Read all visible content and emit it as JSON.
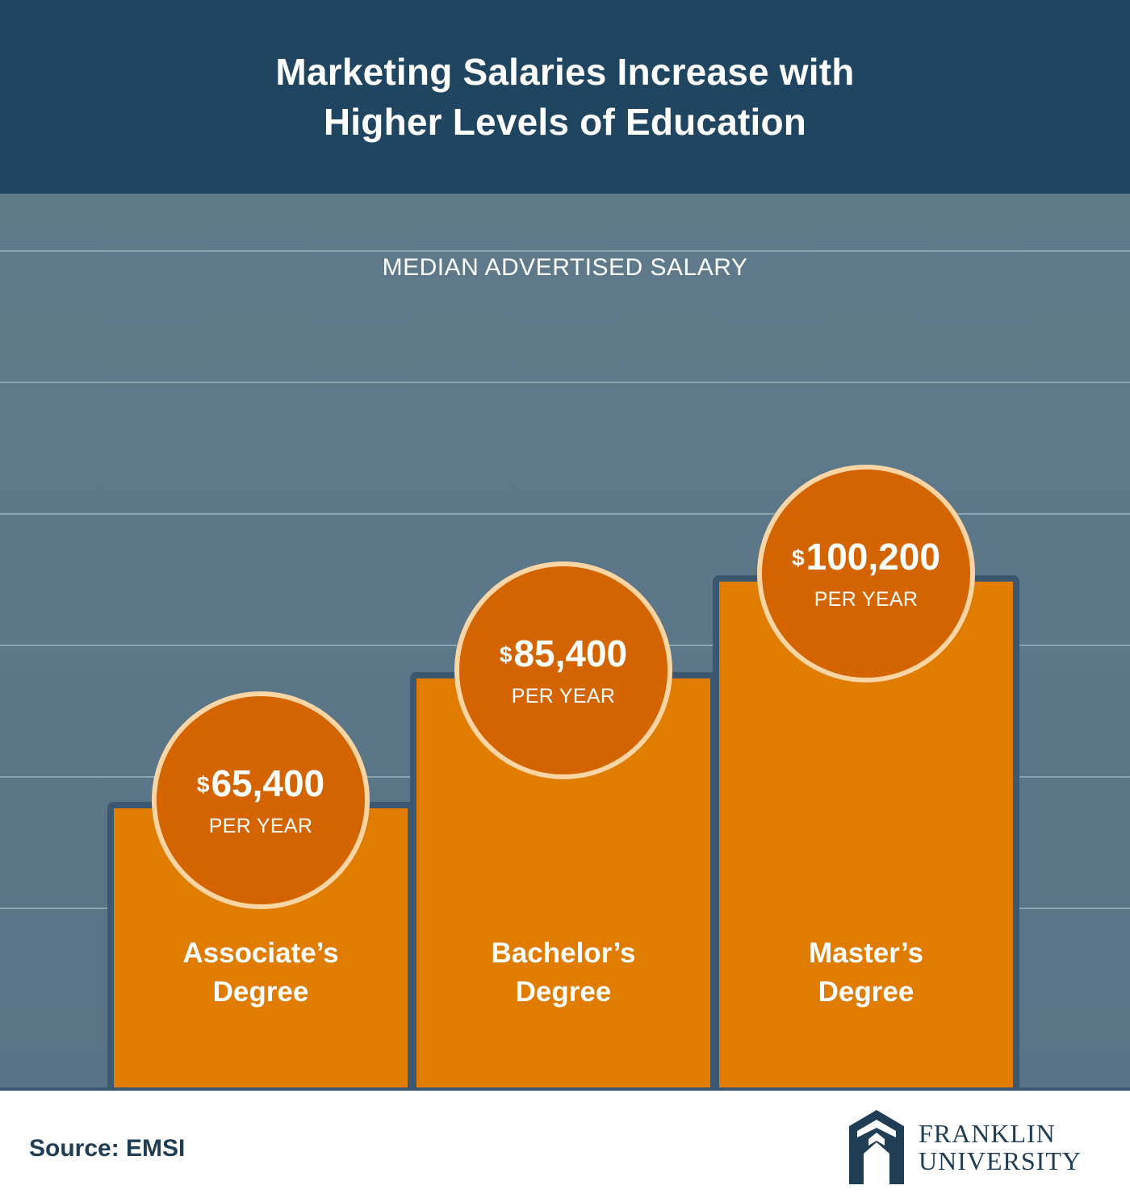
{
  "header": {
    "title_line1": "Marketing Salaries Increase with",
    "title_line2": "Higher Levels of Education"
  },
  "colors": {
    "header_bg": "#1f4560",
    "plot_bg": "#5c7888",
    "bar": "#e07c00",
    "circle": "#d46400",
    "circle_ring": "#fcd5a4",
    "footer_text": "#1f3d55"
  },
  "chart_data": {
    "type": "bar",
    "title": "Marketing Salaries Increase with Higher Levels of Education",
    "subtitle": "MEDIAN ADVERTISED SALARY",
    "categories": [
      "Associate's Degree",
      "Bachelor's Degree",
      "Master's Degree"
    ],
    "values": [
      65400,
      85400,
      100200
    ],
    "value_labels": [
      "65,400",
      "85,400",
      "100,200"
    ],
    "currency_symbol": "$",
    "unit_label": "PER YEAR",
    "bar_labels": [
      {
        "line1": "Associate’s",
        "line2": "Degree"
      },
      {
        "line1": "Bachelor’s",
        "line2": "Degree"
      },
      {
        "line1": "Master’s",
        "line2": "Degree"
      }
    ],
    "ylim": [
      0,
      130000
    ],
    "grid": true,
    "legend": "none"
  },
  "footer": {
    "source": "Source: EMSI",
    "logo_line1": "FRANKLIN",
    "logo_line2": "UNIVERSITY",
    "logo_icon": "franklin-arch-icon"
  }
}
